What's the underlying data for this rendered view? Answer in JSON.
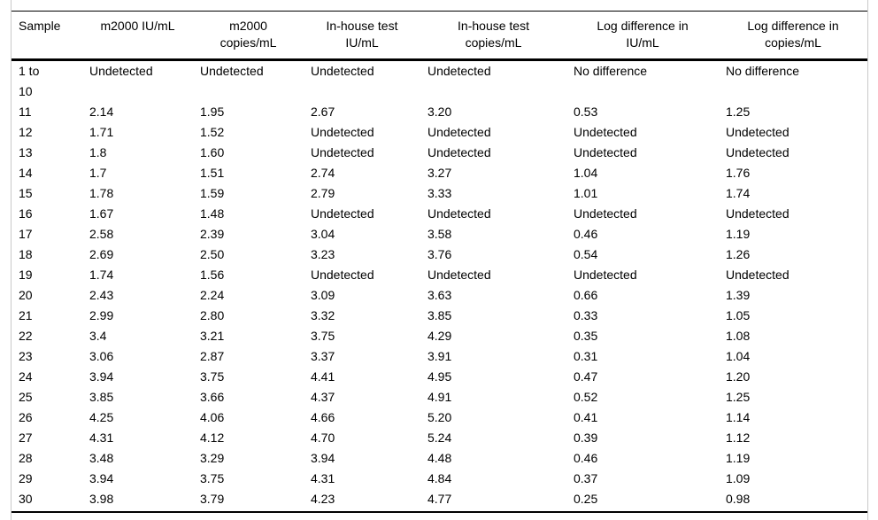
{
  "colors": {
    "rule": "#000000",
    "frame_border": "#c9c9c9",
    "text": "#000000",
    "background": "#ffffff"
  },
  "table": {
    "columns": [
      {
        "label": "Sample"
      },
      {
        "label": "m2000 IU/mL"
      },
      {
        "label": "m2000\ncopies/mL"
      },
      {
        "label": "In-house test\nIU/mL"
      },
      {
        "label": "In-house test\ncopies/mL"
      },
      {
        "label": "Log difference in\nIU/mL"
      },
      {
        "label": "Log difference in\ncopies/mL"
      }
    ],
    "rows": [
      [
        "1 to\n10",
        "Undetected",
        "Undetected",
        "Undetected",
        "Undetected",
        "No difference",
        "No difference"
      ],
      [
        "11",
        "2.14",
        "1.95",
        "2.67",
        "3.20",
        "0.53",
        "1.25"
      ],
      [
        "12",
        "1.71",
        "1.52",
        "Undetected",
        "Undetected",
        "Undetected",
        "Undetected"
      ],
      [
        "13",
        "1.8",
        "1.60",
        "Undetected",
        "Undetected",
        "Undetected",
        "Undetected"
      ],
      [
        "14",
        "1.7",
        "1.51",
        "2.74",
        "3.27",
        "1.04",
        "1.76"
      ],
      [
        "15",
        "1.78",
        "1.59",
        "2.79",
        "3.33",
        "1.01",
        "1.74"
      ],
      [
        "16",
        "1.67",
        "1.48",
        "Undetected",
        "Undetected",
        "Undetected",
        "Undetected"
      ],
      [
        "17",
        "2.58",
        "2.39",
        "3.04",
        "3.58",
        "0.46",
        "1.19"
      ],
      [
        "18",
        "2.69",
        "2.50",
        "3.23",
        "3.76",
        "0.54",
        "1.26"
      ],
      [
        "19",
        "1.74",
        "1.56",
        "Undetected",
        "Undetected",
        "Undetected",
        "Undetected"
      ],
      [
        "20",
        "2.43",
        "2.24",
        "3.09",
        "3.63",
        "0.66",
        "1.39"
      ],
      [
        "21",
        "2.99",
        "2.80",
        "3.32",
        "3.85",
        "0.33",
        "1.05"
      ],
      [
        "22",
        "3.4",
        "3.21",
        "3.75",
        "4.29",
        "0.35",
        "1.08"
      ],
      [
        "23",
        "3.06",
        "2.87",
        "3.37",
        "3.91",
        "0.31",
        "1.04"
      ],
      [
        "24",
        "3.94",
        "3.75",
        "4.41",
        "4.95",
        "0.47",
        "1.20"
      ],
      [
        "25",
        "3.85",
        "3.66",
        "4.37",
        "4.91",
        "0.52",
        "1.25"
      ],
      [
        "26",
        "4.25",
        "4.06",
        "4.66",
        "5.20",
        "0.41",
        "1.14"
      ],
      [
        "27",
        "4.31",
        "4.12",
        "4.70",
        "5.24",
        "0.39",
        "1.12"
      ],
      [
        "28",
        "3.48",
        "3.29",
        "3.94",
        "4.48",
        "0.46",
        "1.19"
      ],
      [
        "29",
        "3.94",
        "3.75",
        "4.31",
        "4.84",
        "0.37",
        "1.09"
      ],
      [
        "30",
        "3.98",
        "3.79",
        "4.23",
        "4.77",
        "0.25",
        "0.98"
      ]
    ]
  }
}
